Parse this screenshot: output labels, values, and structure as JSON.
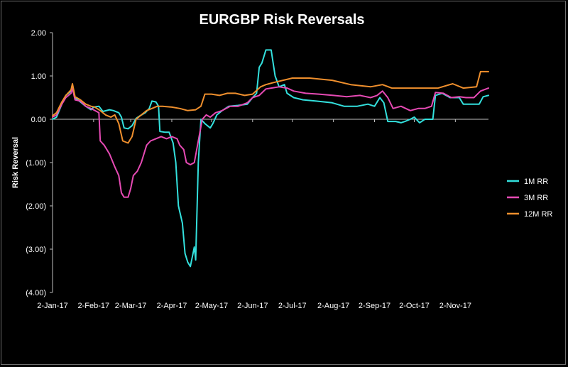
{
  "chart_data": {
    "type": "line",
    "title": "EURGBP Risk Reversals",
    "xlabel": "",
    "ylabel": "Risk Reversal",
    "ylim": [
      -4,
      2
    ],
    "yticks": [
      2,
      1,
      0,
      -1,
      -2,
      -3,
      -4
    ],
    "ytick_labels": [
      "2.00",
      "1.00",
      "0.00",
      "(1.00)",
      "(2.00)",
      "(3.00)",
      "(4.00)"
    ],
    "xlim": [
      "2017-01-02",
      "2017-11-27"
    ],
    "xticks": [
      "2017-01-02",
      "2017-02-02",
      "2017-03-02",
      "2017-04-02",
      "2017-05-02",
      "2017-06-02",
      "2017-07-02",
      "2017-08-02",
      "2017-09-02",
      "2017-10-02",
      "2017-11-02"
    ],
    "xtick_labels": [
      "2-Jan-17",
      "2-Feb-17",
      "2-Mar-17",
      "2-Apr-17",
      "2-May-17",
      "2-Jun-17",
      "2-Jul-17",
      "2-Aug-17",
      "2-Sep-17",
      "2-Oct-17",
      "2-Nov-17"
    ],
    "grid": false,
    "legend_position": "right",
    "series": [
      {
        "name": "1M RR",
        "color": "#33e0dd",
        "points": [
          [
            "2017-01-02",
            0.0
          ],
          [
            "2017-01-05",
            0.05
          ],
          [
            "2017-01-09",
            0.35
          ],
          [
            "2017-01-12",
            0.55
          ],
          [
            "2017-01-16",
            0.65
          ],
          [
            "2017-01-17",
            0.78
          ],
          [
            "2017-01-19",
            0.5
          ],
          [
            "2017-01-23",
            0.4
          ],
          [
            "2017-01-27",
            0.3
          ],
          [
            "2017-01-31",
            0.22
          ],
          [
            "2017-02-02",
            0.28
          ],
          [
            "2017-02-06",
            0.3
          ],
          [
            "2017-02-09",
            0.18
          ],
          [
            "2017-02-14",
            0.22
          ],
          [
            "2017-02-17",
            0.2
          ],
          [
            "2017-02-21",
            0.15
          ],
          [
            "2017-02-23",
            0.05
          ],
          [
            "2017-02-25",
            -0.2
          ],
          [
            "2017-02-28",
            -0.22
          ],
          [
            "2017-03-03",
            -0.15
          ],
          [
            "2017-03-06",
            0.02
          ],
          [
            "2017-03-09",
            0.08
          ],
          [
            "2017-03-13",
            0.15
          ],
          [
            "2017-03-16",
            0.25
          ],
          [
            "2017-03-18",
            0.42
          ],
          [
            "2017-03-21",
            0.4
          ],
          [
            "2017-03-23",
            0.3
          ],
          [
            "2017-03-24",
            -0.28
          ],
          [
            "2017-03-28",
            -0.3
          ],
          [
            "2017-03-31",
            -0.3
          ],
          [
            "2017-04-03",
            -0.55
          ],
          [
            "2017-04-05",
            -1.0
          ],
          [
            "2017-04-07",
            -2.0
          ],
          [
            "2017-04-10",
            -2.4
          ],
          [
            "2017-04-12",
            -3.1
          ],
          [
            "2017-04-14",
            -3.3
          ],
          [
            "2017-04-16",
            -3.4
          ],
          [
            "2017-04-19",
            -2.95
          ],
          [
            "2017-04-20",
            -3.25
          ],
          [
            "2017-04-22",
            -1.0
          ],
          [
            "2017-04-24",
            0.0
          ],
          [
            "2017-04-27",
            -0.1
          ],
          [
            "2017-05-01",
            -0.2
          ],
          [
            "2017-05-03",
            -0.1
          ],
          [
            "2017-05-06",
            0.1
          ],
          [
            "2017-05-10",
            0.2
          ],
          [
            "2017-05-15",
            0.3
          ],
          [
            "2017-05-22",
            0.32
          ],
          [
            "2017-05-29",
            0.35
          ],
          [
            "2017-06-02",
            0.5
          ],
          [
            "2017-06-05",
            0.6
          ],
          [
            "2017-06-07",
            1.2
          ],
          [
            "2017-06-09",
            1.3
          ],
          [
            "2017-06-12",
            1.6
          ],
          [
            "2017-06-16",
            1.6
          ],
          [
            "2017-06-19",
            1.0
          ],
          [
            "2017-06-22",
            0.75
          ],
          [
            "2017-06-26",
            0.8
          ],
          [
            "2017-06-28",
            0.6
          ],
          [
            "2017-07-03",
            0.5
          ],
          [
            "2017-07-10",
            0.45
          ],
          [
            "2017-07-20",
            0.42
          ],
          [
            "2017-08-01",
            0.38
          ],
          [
            "2017-08-10",
            0.3
          ],
          [
            "2017-08-20",
            0.3
          ],
          [
            "2017-08-28",
            0.35
          ],
          [
            "2017-09-02",
            0.3
          ],
          [
            "2017-09-06",
            0.5
          ],
          [
            "2017-09-09",
            0.38
          ],
          [
            "2017-09-12",
            -0.05
          ],
          [
            "2017-09-18",
            -0.05
          ],
          [
            "2017-09-22",
            -0.08
          ],
          [
            "2017-09-25",
            -0.05
          ],
          [
            "2017-09-29",
            0.0
          ],
          [
            "2017-10-02",
            0.05
          ],
          [
            "2017-10-06",
            -0.08
          ],
          [
            "2017-10-10",
            0.0
          ],
          [
            "2017-10-16",
            0.0
          ],
          [
            "2017-10-18",
            0.55
          ],
          [
            "2017-10-23",
            0.6
          ],
          [
            "2017-10-29",
            0.5
          ],
          [
            "2017-11-05",
            0.5
          ],
          [
            "2017-11-08",
            0.35
          ],
          [
            "2017-11-15",
            0.35
          ],
          [
            "2017-11-20",
            0.35
          ],
          [
            "2017-11-23",
            0.52
          ],
          [
            "2017-11-27",
            0.55
          ]
        ]
      },
      {
        "name": "3M RR",
        "color": "#e64ab4",
        "points": [
          [
            "2017-01-02",
            0.05
          ],
          [
            "2017-01-05",
            0.1
          ],
          [
            "2017-01-09",
            0.35
          ],
          [
            "2017-01-12",
            0.5
          ],
          [
            "2017-01-16",
            0.6
          ],
          [
            "2017-01-17",
            0.72
          ],
          [
            "2017-01-19",
            0.45
          ],
          [
            "2017-01-23",
            0.42
          ],
          [
            "2017-01-27",
            0.3
          ],
          [
            "2017-01-31",
            0.25
          ],
          [
            "2017-02-03",
            0.2
          ],
          [
            "2017-02-06",
            0.15
          ],
          [
            "2017-02-07",
            -0.5
          ],
          [
            "2017-02-10",
            -0.6
          ],
          [
            "2017-02-14",
            -0.8
          ],
          [
            "2017-02-18",
            -1.1
          ],
          [
            "2017-02-21",
            -1.3
          ],
          [
            "2017-02-23",
            -1.7
          ],
          [
            "2017-02-25",
            -1.8
          ],
          [
            "2017-02-28",
            -1.8
          ],
          [
            "2017-03-02",
            -1.6
          ],
          [
            "2017-03-04",
            -1.3
          ],
          [
            "2017-03-07",
            -1.2
          ],
          [
            "2017-03-10",
            -1.0
          ],
          [
            "2017-03-14",
            -0.6
          ],
          [
            "2017-03-17",
            -0.5
          ],
          [
            "2017-03-21",
            -0.45
          ],
          [
            "2017-03-25",
            -0.4
          ],
          [
            "2017-03-29",
            -0.45
          ],
          [
            "2017-04-02",
            -0.4
          ],
          [
            "2017-04-06",
            -0.45
          ],
          [
            "2017-04-08",
            -0.6
          ],
          [
            "2017-04-11",
            -0.7
          ],
          [
            "2017-04-13",
            -1.0
          ],
          [
            "2017-04-16",
            -1.05
          ],
          [
            "2017-04-19",
            -1.0
          ],
          [
            "2017-04-22",
            -0.5
          ],
          [
            "2017-04-25",
            0.0
          ],
          [
            "2017-04-28",
            0.1
          ],
          [
            "2017-05-01",
            0.05
          ],
          [
            "2017-05-05",
            0.15
          ],
          [
            "2017-05-10",
            0.2
          ],
          [
            "2017-05-16",
            0.3
          ],
          [
            "2017-05-22",
            0.3
          ],
          [
            "2017-05-29",
            0.38
          ],
          [
            "2017-06-02",
            0.5
          ],
          [
            "2017-06-07",
            0.55
          ],
          [
            "2017-06-12",
            0.7
          ],
          [
            "2017-06-16",
            0.72
          ],
          [
            "2017-06-22",
            0.75
          ],
          [
            "2017-06-28",
            0.72
          ],
          [
            "2017-07-03",
            0.65
          ],
          [
            "2017-07-12",
            0.6
          ],
          [
            "2017-07-22",
            0.58
          ],
          [
            "2017-08-02",
            0.55
          ],
          [
            "2017-08-12",
            0.52
          ],
          [
            "2017-08-22",
            0.55
          ],
          [
            "2017-08-30",
            0.5
          ],
          [
            "2017-09-04",
            0.55
          ],
          [
            "2017-09-08",
            0.65
          ],
          [
            "2017-09-12",
            0.5
          ],
          [
            "2017-09-16",
            0.25
          ],
          [
            "2017-09-22",
            0.3
          ],
          [
            "2017-09-29",
            0.2
          ],
          [
            "2017-10-05",
            0.25
          ],
          [
            "2017-10-10",
            0.25
          ],
          [
            "2017-10-15",
            0.3
          ],
          [
            "2017-10-18",
            0.62
          ],
          [
            "2017-10-24",
            0.6
          ],
          [
            "2017-10-30",
            0.5
          ],
          [
            "2017-11-05",
            0.52
          ],
          [
            "2017-11-10",
            0.5
          ],
          [
            "2017-11-16",
            0.5
          ],
          [
            "2017-11-21",
            0.65
          ],
          [
            "2017-11-27",
            0.72
          ]
        ]
      },
      {
        "name": "12M RR",
        "color": "#ef8f2d",
        "points": [
          [
            "2017-01-02",
            0.08
          ],
          [
            "2017-01-05",
            0.15
          ],
          [
            "2017-01-09",
            0.4
          ],
          [
            "2017-01-12",
            0.55
          ],
          [
            "2017-01-16",
            0.68
          ],
          [
            "2017-01-17",
            0.82
          ],
          [
            "2017-01-19",
            0.52
          ],
          [
            "2017-01-23",
            0.45
          ],
          [
            "2017-01-27",
            0.35
          ],
          [
            "2017-01-31",
            0.3
          ],
          [
            "2017-02-03",
            0.28
          ],
          [
            "2017-02-07",
            0.2
          ],
          [
            "2017-02-11",
            0.1
          ],
          [
            "2017-02-15",
            0.05
          ],
          [
            "2017-02-18",
            0.1
          ],
          [
            "2017-02-21",
            -0.1
          ],
          [
            "2017-02-24",
            -0.5
          ],
          [
            "2017-02-28",
            -0.55
          ],
          [
            "2017-03-03",
            -0.4
          ],
          [
            "2017-03-06",
            0.0
          ],
          [
            "2017-03-10",
            0.1
          ],
          [
            "2017-03-14",
            0.2
          ],
          [
            "2017-03-18",
            0.25
          ],
          [
            "2017-03-22",
            0.3
          ],
          [
            "2017-03-26",
            0.3
          ],
          [
            "2017-04-02",
            0.28
          ],
          [
            "2017-04-08",
            0.25
          ],
          [
            "2017-04-14",
            0.2
          ],
          [
            "2017-04-20",
            0.22
          ],
          [
            "2017-04-24",
            0.3
          ],
          [
            "2017-04-27",
            0.58
          ],
          [
            "2017-05-02",
            0.58
          ],
          [
            "2017-05-08",
            0.55
          ],
          [
            "2017-05-14",
            0.6
          ],
          [
            "2017-05-20",
            0.6
          ],
          [
            "2017-05-27",
            0.55
          ],
          [
            "2017-06-02",
            0.58
          ],
          [
            "2017-06-08",
            0.75
          ],
          [
            "2017-06-12",
            0.8
          ],
          [
            "2017-06-18",
            0.85
          ],
          [
            "2017-06-25",
            0.9
          ],
          [
            "2017-07-02",
            0.95
          ],
          [
            "2017-07-15",
            0.95
          ],
          [
            "2017-08-01",
            0.9
          ],
          [
            "2017-08-15",
            0.8
          ],
          [
            "2017-08-30",
            0.75
          ],
          [
            "2017-09-08",
            0.8
          ],
          [
            "2017-09-15",
            0.72
          ],
          [
            "2017-09-29",
            0.72
          ],
          [
            "2017-10-10",
            0.72
          ],
          [
            "2017-10-20",
            0.72
          ],
          [
            "2017-10-31",
            0.82
          ],
          [
            "2017-11-08",
            0.72
          ],
          [
            "2017-11-18",
            0.75
          ],
          [
            "2017-11-21",
            1.1
          ],
          [
            "2017-11-27",
            1.1
          ]
        ]
      }
    ]
  }
}
